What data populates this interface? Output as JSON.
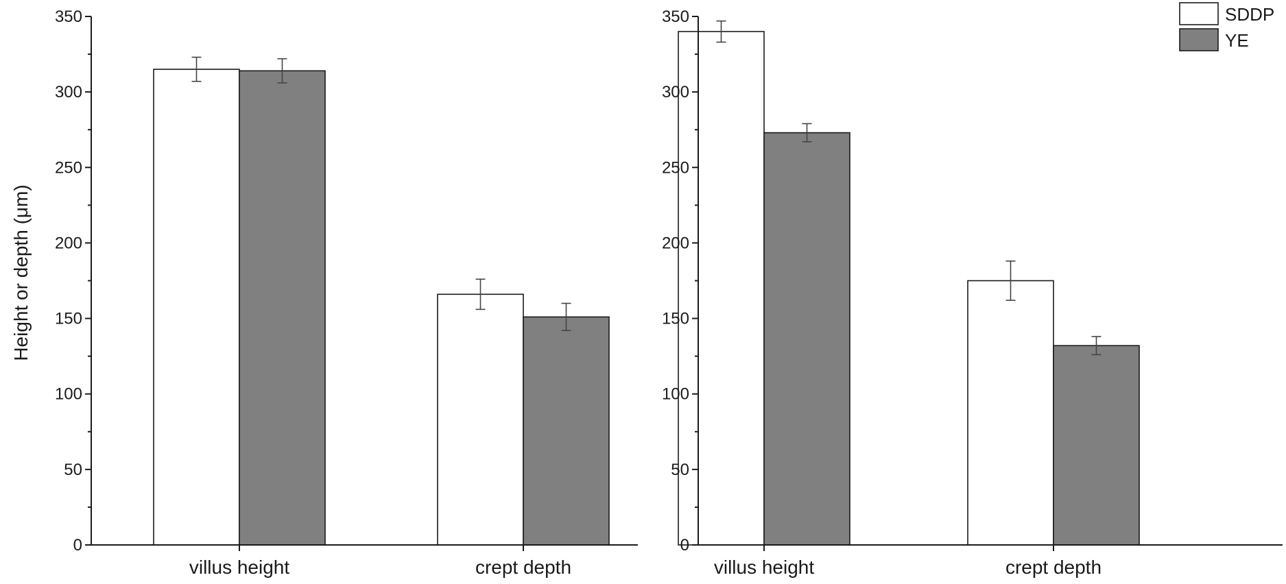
{
  "chart_data": [
    {
      "type": "bar",
      "categories": [
        "villus height",
        "crept depth"
      ],
      "series": [
        {
          "name": "SDDP",
          "values": [
            315,
            166
          ],
          "errors": [
            8,
            10
          ]
        },
        {
          "name": "YE",
          "values": [
            314,
            151
          ],
          "errors": [
            8,
            9
          ]
        }
      ],
      "ylabel": "Height or depth (μm)",
      "ylim": [
        0,
        350
      ],
      "yticks": [
        "0",
        "50",
        "100",
        "150",
        "200",
        "250",
        "300",
        "350"
      ],
      "legend": false
    },
    {
      "type": "bar",
      "categories": [
        "villus height",
        "crept depth"
      ],
      "series": [
        {
          "name": "SDDP",
          "values": [
            340,
            175
          ],
          "errors": [
            7,
            13
          ]
        },
        {
          "name": "YE",
          "values": [
            273,
            132
          ],
          "errors": [
            6,
            6
          ]
        }
      ],
      "ylabel": "",
      "ylim": [
        0,
        350
      ],
      "yticks": [
        "0",
        "50",
        "100",
        "150",
        "200",
        "250",
        "300",
        "350"
      ],
      "legend": true,
      "legend_position": "top-right"
    }
  ],
  "colors": {
    "SDDP": "#ffffff",
    "YE": "#808080"
  }
}
